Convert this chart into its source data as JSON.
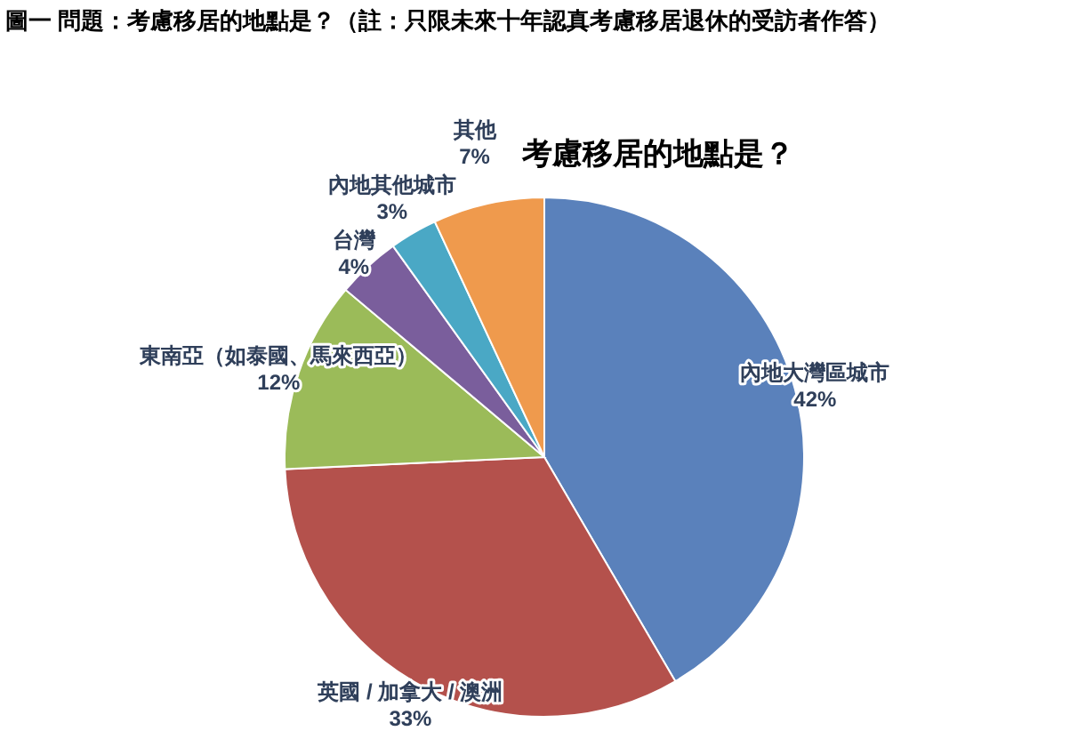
{
  "chart_data": {
    "type": "pie",
    "title": "考慮移居的地點是？",
    "subtitle": "圖一  問題：考慮移居的地點是？（註：只限未來十年認真考慮移居退休的受訪者作答）",
    "categories": [
      "內地大灣區城市",
      "英國 / 加拿大 / 澳洲",
      "東南亞（如泰國、馬來西亞）",
      "台灣",
      "內地其他城市",
      "其他"
    ],
    "values": [
      42,
      33,
      12,
      4,
      3,
      7
    ],
    "colors": [
      "#5a81bb",
      "#b4514c",
      "#9bbb59",
      "#7a5e9c",
      "#4aa8c5",
      "#ef9a4d"
    ],
    "value_labels": [
      "42%",
      "33%",
      "12%",
      "4%",
      "3%",
      "7%"
    ]
  }
}
